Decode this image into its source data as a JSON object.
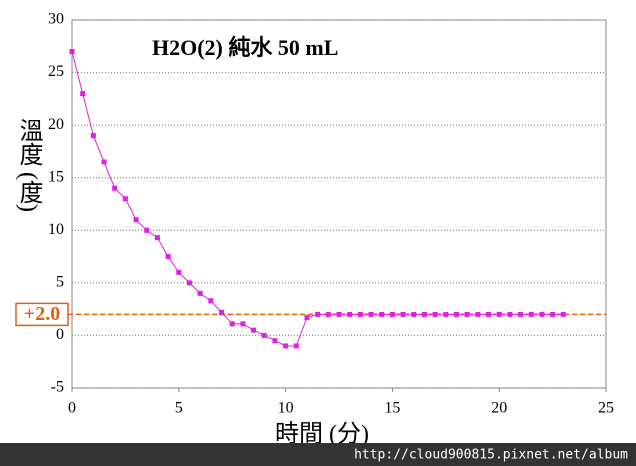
{
  "chart_data": {
    "type": "line",
    "title": "H2O(2) 純水 50 mL",
    "x_label": "時間 (分)",
    "y_label": "溫度 (度)",
    "x": [
      0,
      0.5,
      1,
      1.5,
      2,
      2.5,
      3,
      3.5,
      4,
      4.5,
      5,
      5.5,
      6,
      6.5,
      7,
      7.5,
      8,
      8.5,
      9,
      9.5,
      10,
      10.5,
      11,
      11.5,
      12,
      12.5,
      13,
      13.5,
      14,
      14.5,
      15,
      15.5,
      16,
      16.5,
      17,
      17.5,
      18,
      18.5,
      19,
      19.5,
      20,
      20.5,
      21,
      21.5,
      22,
      22.5,
      23
    ],
    "values": [
      27,
      23,
      19,
      16.5,
      14,
      13,
      11,
      10,
      9.3,
      7.5,
      6,
      5,
      4,
      3.3,
      2.2,
      1.1,
      1.1,
      0.5,
      0,
      -0.5,
      -1,
      -1,
      1.7,
      2,
      2,
      2,
      2,
      2,
      2,
      2,
      2,
      2,
      2,
      2,
      2,
      2,
      2,
      2,
      2,
      2,
      2,
      2,
      2,
      2,
      2,
      2,
      2
    ],
    "color": "#e020e0",
    "xlim": [
      0,
      25
    ],
    "xticks": [
      0,
      5,
      10,
      15,
      20,
      25
    ],
    "ylim": [
      -5,
      30
    ],
    "yticks": [
      -5,
      0,
      5,
      10,
      15,
      20,
      25,
      30
    ],
    "grid": true,
    "reference_line": {
      "value": 2,
      "label": "+2.0",
      "color": "#e06010"
    },
    "watermark": "http://cloud900815.pixnet.net/album"
  }
}
